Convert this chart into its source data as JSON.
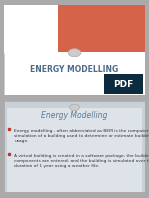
{
  "slide1_bg": "#ffffff",
  "slide1_rect_color": "#d4634a",
  "slide1_title": "ENERGY MODELLING",
  "slide1_title_color": "#4a6b8a",
  "slide1_title_fontsize": 5.5,
  "slide1_pdf_bg": "#0d2b3e",
  "slide1_pdf_text": "PDF",
  "slide1_pdf_color": "#ffffff",
  "slide2_bg": "#c8d0d8",
  "slide2_inner_bg": "#dde3e8",
  "slide2_heading": "Energy Modelling",
  "slide2_heading_color": "#5a7a99",
  "slide2_heading_fontsize": 5.5,
  "slide2_bullet1": "Energy modelling , often abbreviated as BEM is the computer\nsimulation of a building used to determine or estimate building energy\nusage.",
  "slide2_bullet2": "A virtual building is created in a software package, the building\ncomponents are entered, and the building is simulated over the\nduration of 1 year using a weather file.",
  "slide2_bullet_color": "#333333",
  "slide2_bullet_fontsize": 3.2,
  "slide2_bullet_marker_color": "#c0392b",
  "circle_color": "#cccccc",
  "circle_edge": "#aaaaaa"
}
